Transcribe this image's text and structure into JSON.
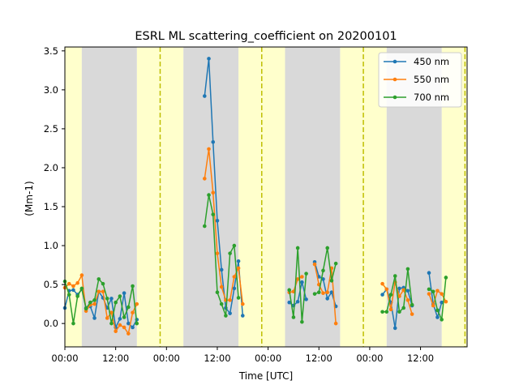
{
  "chart_data": {
    "type": "line",
    "title": "ESRL ML scattering_coefficient on 20200101",
    "xlabel": "Time [UTC]",
    "ylabel": "(Mm-1)",
    "x_unit": "hours from 2020-01-01 00:00 UTC",
    "xlim": [
      0,
      95
    ],
    "ylim": [
      -0.3,
      3.55
    ],
    "x_ticks": [
      0,
      12,
      24,
      36,
      48,
      60,
      72,
      84
    ],
    "x_tick_labels": [
      "00:00",
      "12:00",
      "00:00",
      "12:00",
      "00:00",
      "12:00",
      "00:00",
      "12:00"
    ],
    "y_ticks": [
      0.0,
      0.5,
      1.0,
      1.5,
      2.0,
      2.5,
      3.0,
      3.5
    ],
    "y_tick_labels": [
      "0.0",
      "0.5",
      "1.0",
      "1.5",
      "2.0",
      "2.5",
      "3.0",
      "3.5"
    ],
    "grid": false,
    "legend_position": "top-right",
    "background_bands": {
      "daylight": [
        [
          0,
          4
        ],
        [
          17,
          28
        ],
        [
          41,
          52
        ],
        [
          65,
          76
        ],
        [
          89,
          95
        ]
      ],
      "night": [
        [
          4,
          17
        ],
        [
          28,
          41
        ],
        [
          52,
          65
        ],
        [
          76,
          89
        ]
      ],
      "daylight_color": "#ffffcc",
      "night_color": "#d9d9d9"
    },
    "vertical_lines": {
      "x": [
        22.5,
        46.5,
        70.5,
        94.5
      ],
      "color": "#bfbf00",
      "style": "dashed"
    },
    "series": [
      {
        "name": "450 nm",
        "color": "#1f77b4",
        "segments": [
          {
            "x": [
              0,
              1,
              2,
              3,
              4,
              5,
              6,
              7,
              8,
              9,
              10,
              11,
              12,
              13,
              14,
              15,
              16,
              17,
              18,
              19
            ],
            "y": [
              0.2,
              0.42,
              0.43,
              0.37,
              0.44,
              0.2,
              0.22,
              0.07,
              0.41,
              0.33,
              0.2,
              0.32,
              -0.05,
              0.06,
              0.39,
              0.0,
              -0.05,
              0.05,
              null,
              null
            ]
          },
          {
            "x": [
              33,
              34,
              35,
              36,
              37,
              38,
              39,
              40,
              41,
              42
            ],
            "y": [
              2.92,
              3.4,
              2.33,
              1.32,
              0.69,
              0.2,
              0.13,
              0.45,
              0.8,
              0.1
            ]
          },
          {
            "x": [
              53,
              54,
              55,
              56,
              57,
              58,
              59,
              60,
              61,
              62,
              63,
              64,
              65
            ],
            "y": [
              0.27,
              0.23,
              0.28,
              0.53,
              0.31,
              null,
              0.79,
              0.6,
              0.57,
              0.32,
              0.4,
              0.22,
              null
            ]
          },
          {
            "x": [
              75,
              76,
              77,
              78,
              79,
              80,
              81,
              82,
              83,
              84,
              85,
              86,
              87,
              88,
              89,
              90
            ],
            "y": [
              0.37,
              0.44,
              0.27,
              -0.06,
              0.45,
              0.46,
              0.42,
              0.23,
              null,
              null,
              null,
              0.65,
              0.25,
              0.08,
              0.27,
              null
            ]
          }
        ]
      },
      {
        "name": "550 nm",
        "color": "#ff7f0e",
        "segments": [
          {
            "x": [
              0,
              1,
              2,
              3,
              4,
              5,
              6,
              7,
              8,
              9,
              10,
              11,
              12,
              13,
              14,
              15,
              16,
              17,
              18,
              19
            ],
            "y": [
              0.46,
              0.51,
              0.48,
              0.52,
              0.62,
              0.16,
              0.24,
              0.25,
              0.41,
              0.41,
              0.07,
              0.14,
              -0.1,
              -0.02,
              -0.05,
              -0.13,
              0.14,
              0.25,
              null,
              null
            ]
          },
          {
            "x": [
              33,
              34,
              35,
              36,
              37,
              38,
              39,
              40,
              41,
              42
            ],
            "y": [
              1.86,
              2.24,
              1.68,
              0.9,
              0.47,
              0.3,
              0.3,
              0.6,
              0.71,
              0.25
            ]
          },
          {
            "x": [
              53,
              54,
              55,
              56,
              57,
              58,
              59,
              60,
              61,
              62,
              63,
              64,
              65
            ],
            "y": [
              0.4,
              0.41,
              0.57,
              0.6,
              null,
              null,
              0.76,
              0.5,
              0.39,
              0.4,
              0.71,
              0.0,
              null
            ]
          },
          {
            "x": [
              75,
              76,
              77,
              78,
              79,
              80,
              81,
              82,
              83,
              84,
              85,
              86,
              87,
              88,
              89,
              90
            ],
            "y": [
              0.51,
              0.44,
              0.18,
              0.53,
              0.35,
              0.43,
              0.3,
              0.12,
              null,
              null,
              null,
              0.38,
              0.23,
              0.42,
              0.38,
              0.28
            ]
          }
        ]
      },
      {
        "name": "700 nm",
        "color": "#2ca02c",
        "segments": [
          {
            "x": [
              0,
              1,
              2,
              3,
              4,
              5,
              6,
              7,
              8,
              9,
              10,
              11,
              12,
              13,
              14,
              15,
              16,
              17,
              18,
              19
            ],
            "y": [
              0.54,
              0.37,
              0.0,
              0.35,
              0.45,
              0.19,
              0.27,
              0.3,
              0.57,
              0.51,
              0.32,
              0.0,
              0.27,
              0.35,
              0.08,
              0.21,
              0.48,
              0.0,
              null,
              null
            ]
          },
          {
            "x": [
              33,
              34,
              35,
              36,
              37,
              38,
              39,
              40,
              41,
              42
            ],
            "y": [
              1.25,
              1.65,
              1.4,
              0.4,
              0.25,
              0.1,
              0.9,
              1.0,
              0.33,
              null
            ]
          },
          {
            "x": [
              53,
              54,
              55,
              56,
              57,
              58,
              59,
              60,
              61,
              62,
              63,
              64,
              65
            ],
            "y": [
              0.43,
              0.08,
              0.97,
              0.02,
              0.64,
              null,
              0.38,
              0.4,
              0.68,
              0.97,
              0.55,
              0.77,
              null
            ]
          },
          {
            "x": [
              75,
              76,
              77,
              78,
              79,
              80,
              81,
              82,
              83,
              84,
              85,
              86,
              87,
              88,
              89,
              90
            ],
            "y": [
              0.15,
              0.15,
              0.37,
              0.61,
              0.15,
              0.2,
              0.7,
              0.24,
              null,
              null,
              null,
              0.44,
              0.41,
              0.17,
              0.05,
              0.59
            ]
          }
        ]
      }
    ]
  }
}
